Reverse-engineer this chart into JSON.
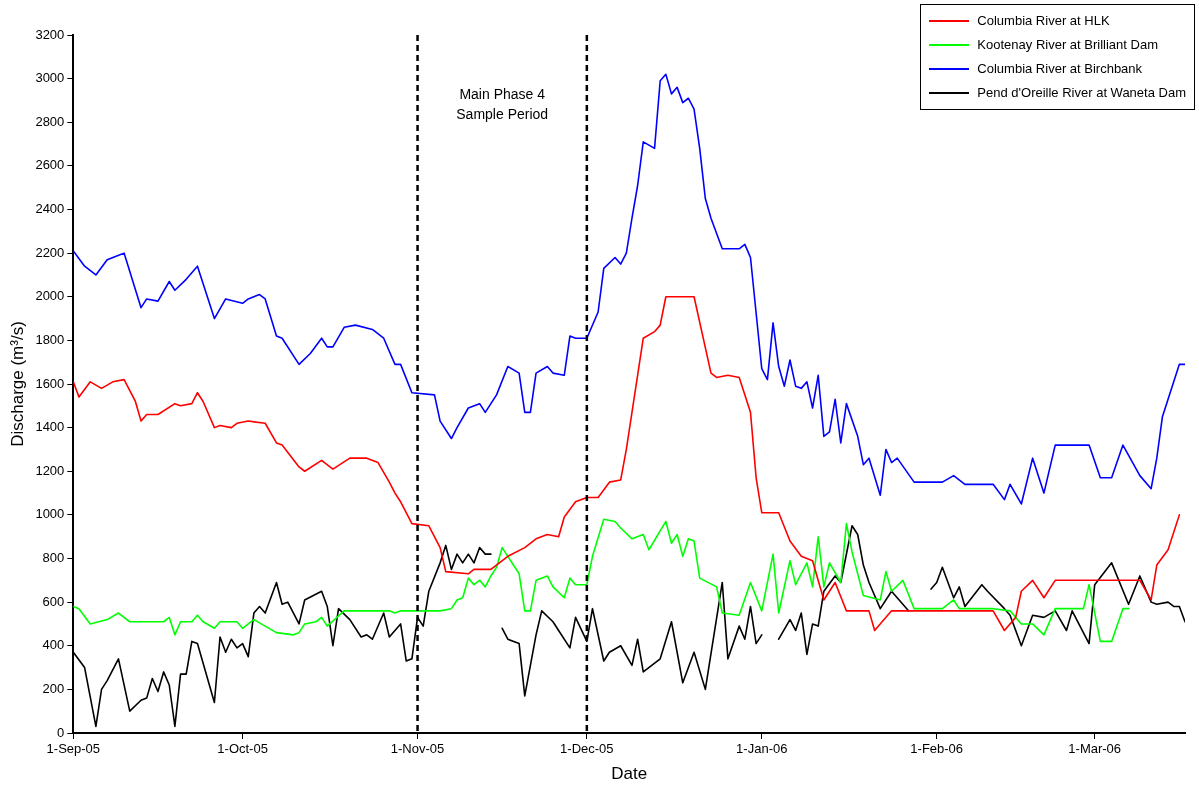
{
  "chart_data": {
    "type": "line",
    "xlabel": "Date",
    "ylabel": "Discharge (m³/s)",
    "xlim": [
      "2005-09-01",
      "2006-03-17"
    ],
    "xticks": [
      {
        "value": "2005-09-01",
        "label": "1-Sep-05"
      },
      {
        "value": "2005-10-01",
        "label": "1-Oct-05"
      },
      {
        "value": "2005-11-01",
        "label": "1-Nov-05"
      },
      {
        "value": "2005-12-01",
        "label": "1-Dec-05"
      },
      {
        "value": "2006-01-01",
        "label": "1-Jan-06"
      },
      {
        "value": "2006-02-01",
        "label": "1-Feb-06"
      },
      {
        "value": "2006-03-01",
        "label": "1-Mar-06"
      }
    ],
    "ylim": [
      0,
      3200
    ],
    "yticks": [
      0,
      200,
      400,
      600,
      800,
      1000,
      1200,
      1400,
      1600,
      1800,
      2000,
      2200,
      2400,
      2600,
      2800,
      3000,
      3200
    ],
    "grid": false,
    "legend": "top right",
    "marker": "none",
    "line_style": "solid",
    "ref_lines": [
      {
        "axis": "x",
        "value": "2005-11-01",
        "color": "#000000",
        "line_style": "dashed"
      },
      {
        "axis": "x",
        "value": "2005-12-01",
        "color": "#000000",
        "line_style": "dashed"
      }
    ],
    "annotations": [
      "Main Phase 4 Sample Period"
    ],
    "series": [
      {
        "name": "Columbia River at HLK",
        "color": "#ff0000",
        "x": [
          "2005-09-01",
          "2005-09-02",
          "2005-09-04",
          "2005-09-06",
          "2005-09-08",
          "2005-09-10",
          "2005-09-12",
          "2005-09-13",
          "2005-09-14",
          "2005-09-16",
          "2005-09-19",
          "2005-09-20",
          "2005-09-22",
          "2005-09-23",
          "2005-09-24",
          "2005-09-26",
          "2005-09-27",
          "2005-09-29",
          "2005-09-30",
          "2005-10-02",
          "2005-10-05",
          "2005-10-07",
          "2005-10-08",
          "2005-10-11",
          "2005-10-12",
          "2005-10-15",
          "2005-10-17",
          "2005-10-20",
          "2005-10-23",
          "2005-10-25",
          "2005-10-27",
          "2005-10-28",
          "2005-10-29",
          "2005-10-31",
          "2005-11-03",
          "2005-11-05",
          "2005-11-06",
          "2005-11-10",
          "2005-11-11",
          "2005-11-14",
          "2005-11-17",
          "2005-11-20",
          "2005-11-22",
          "2005-11-24",
          "2005-11-26",
          "2005-11-27",
          "2005-11-29",
          "2005-12-01",
          "2005-12-03",
          "2005-12-05",
          "2005-12-07",
          "2005-12-08",
          "2005-12-11",
          "2005-12-13",
          "2005-12-14",
          "2005-12-15",
          "2005-12-20",
          "2005-12-23",
          "2005-12-24",
          "2005-12-26",
          "2005-12-28",
          "2005-12-30",
          "2005-12-31",
          "2006-01-01",
          "2006-01-04",
          "2006-01-06",
          "2006-01-08",
          "2006-01-10",
          "2006-01-12",
          "2006-01-14",
          "2006-01-16",
          "2006-01-20",
          "2006-01-21",
          "2006-01-24",
          "2006-02-11",
          "2006-02-13",
          "2006-02-15",
          "2006-02-16",
          "2006-02-18",
          "2006-02-20",
          "2006-02-22",
          "2006-03-09",
          "2006-03-11",
          "2006-03-12",
          "2006-03-14",
          "2006-03-16"
        ],
        "values": [
          1610,
          1540,
          1610,
          1580,
          1610,
          1620,
          1520,
          1430,
          1460,
          1460,
          1510,
          1500,
          1510,
          1560,
          1520,
          1400,
          1410,
          1400,
          1420,
          1430,
          1420,
          1330,
          1320,
          1220,
          1200,
          1250,
          1210,
          1260,
          1260,
          1240,
          1150,
          1100,
          1060,
          960,
          950,
          850,
          740,
          730,
          750,
          750,
          810,
          850,
          890,
          910,
          900,
          990,
          1060,
          1080,
          1080,
          1150,
          1160,
          1300,
          1810,
          1840,
          1870,
          2000,
          2000,
          1650,
          1630,
          1640,
          1630,
          1470,
          1170,
          1010,
          1010,
          880,
          810,
          790,
          610,
          690,
          560,
          560,
          470,
          560,
          560,
          470,
          530,
          650,
          700,
          620,
          700,
          700,
          610,
          770,
          840,
          1000
        ]
      },
      {
        "name": "Kootenay River at Brilliant Dam",
        "color": "#00ff00",
        "x": [
          "2005-09-01",
          "2005-09-02",
          "2005-09-04",
          "2005-09-07",
          "2005-09-09",
          "2005-09-11",
          "2005-09-17",
          "2005-09-18",
          "2005-09-19",
          "2005-09-20",
          "2005-09-22",
          "2005-09-23",
          "2005-09-24",
          "2005-09-26",
          "2005-09-27",
          "2005-09-30",
          "2005-10-01",
          "2005-10-02",
          "2005-10-03",
          "2005-10-07",
          "2005-10-10",
          "2005-10-11",
          "2005-10-12",
          "2005-10-14",
          "2005-10-15",
          "2005-10-16",
          "2005-10-19",
          "2005-10-27",
          "2005-10-28",
          "2005-10-29",
          "2005-11-05",
          "2005-11-07",
          "2005-11-08",
          "2005-11-09",
          "2005-11-10",
          "2005-11-11",
          "2005-11-12",
          "2005-11-13",
          "2005-11-14",
          "2005-11-15",
          "2005-11-16",
          "2005-11-17",
          "2005-11-19",
          "2005-11-20",
          "2005-11-21",
          "2005-11-22",
          "2005-11-24",
          "2005-11-25",
          "2005-11-27",
          "2005-11-28",
          "2005-11-29",
          "2005-12-01",
          "2005-12-02",
          "2005-12-04",
          "2005-12-06",
          "2005-12-07",
          "2005-12-09",
          "2005-12-11",
          "2005-12-12",
          "2005-12-15",
          "2005-12-16",
          "2005-12-17",
          "2005-12-18",
          "2005-12-19",
          "2005-12-20",
          "2005-12-21",
          "2005-12-24",
          "2005-12-25",
          "2005-12-28",
          "2005-12-30",
          "2006-01-01",
          "2006-01-03",
          "2006-01-04",
          "2006-01-06",
          "2006-01-07",
          "2006-01-09",
          "2006-01-10",
          "2006-01-11",
          "2006-01-12",
          "2006-01-13",
          "2006-01-15",
          "2006-01-16",
          "2006-01-17",
          "2006-01-19",
          "2006-01-22",
          "2006-01-23",
          "2006-01-24",
          "2006-01-26",
          "2006-01-28",
          "2006-02-02",
          "2006-02-04",
          "2006-02-05",
          "2006-02-11",
          "2006-02-14",
          "2006-02-16",
          "2006-02-18",
          "2006-02-20",
          "2006-02-22",
          "2006-02-27",
          "2006-02-28",
          "2006-03-02",
          "2006-03-04",
          "2006-03-06",
          "2006-03-07"
        ],
        "values": [
          580,
          570,
          500,
          520,
          550,
          510,
          510,
          530,
          450,
          510,
          510,
          540,
          510,
          480,
          510,
          510,
          480,
          500,
          520,
          460,
          450,
          460,
          500,
          510,
          530,
          490,
          560,
          560,
          550,
          560,
          560,
          570,
          610,
          620,
          710,
          680,
          700,
          670,
          720,
          760,
          850,
          810,
          730,
          560,
          560,
          700,
          720,
          670,
          620,
          710,
          680,
          680,
          810,
          980,
          970,
          940,
          890,
          910,
          840,
          970,
          870,
          910,
          810,
          890,
          880,
          710,
          670,
          550,
          540,
          690,
          560,
          820,
          550,
          790,
          680,
          780,
          670,
          900,
          670,
          780,
          690,
          960,
          830,
          630,
          610,
          740,
          650,
          700,
          570,
          570,
          610,
          570,
          570,
          560,
          500,
          500,
          450,
          570,
          570,
          680,
          420,
          420,
          570,
          570
        ]
      },
      {
        "name": "Columbia River at Birchbank",
        "color": "#0000ff",
        "x": [
          "2005-09-01",
          "2005-09-03",
          "2005-09-05",
          "2005-09-07",
          "2005-09-10",
          "2005-09-13",
          "2005-09-14",
          "2005-09-16",
          "2005-09-18",
          "2005-09-19",
          "2005-09-21",
          "2005-09-23",
          "2005-09-26",
          "2005-09-28",
          "2005-10-01",
          "2005-10-02",
          "2005-10-04",
          "2005-10-05",
          "2005-10-07",
          "2005-10-08",
          "2005-10-11",
          "2005-10-13",
          "2005-10-15",
          "2005-10-16",
          "2005-10-17",
          "2005-10-19",
          "2005-10-21",
          "2005-10-24",
          "2005-10-26",
          "2005-10-28",
          "2005-10-29",
          "2005-10-31",
          "2005-11-04",
          "2005-11-05",
          "2005-11-07",
          "2005-11-08",
          "2005-11-10",
          "2005-11-12",
          "2005-11-13",
          "2005-11-15",
          "2005-11-17",
          "2005-11-19",
          "2005-11-20",
          "2005-11-21",
          "2005-11-22",
          "2005-11-24",
          "2005-11-25",
          "2005-11-27",
          "2005-11-28",
          "2005-11-29",
          "2005-12-01",
          "2005-12-03",
          "2005-12-04",
          "2005-12-06",
          "2005-12-07",
          "2005-12-08",
          "2005-12-09",
          "2005-12-10",
          "2005-12-11",
          "2005-12-13",
          "2005-12-14",
          "2005-12-15",
          "2005-12-16",
          "2005-12-17",
          "2005-12-18",
          "2005-12-19",
          "2005-12-20",
          "2005-12-21",
          "2005-12-22",
          "2005-12-23",
          "2005-12-25",
          "2005-12-28",
          "2005-12-29",
          "2005-12-30",
          "2006-01-01",
          "2006-01-02",
          "2006-01-03",
          "2006-01-04",
          "2006-01-05",
          "2006-01-06",
          "2006-01-07",
          "2006-01-08",
          "2006-01-09",
          "2006-01-10",
          "2006-01-11",
          "2006-01-12",
          "2006-01-13",
          "2006-01-14",
          "2006-01-15",
          "2006-01-16",
          "2006-01-18",
          "2006-01-19",
          "2006-01-20",
          "2006-01-22",
          "2006-01-23",
          "2006-01-24",
          "2006-01-25",
          "2006-01-28",
          "2006-02-02",
          "2006-02-04",
          "2006-02-06",
          "2006-02-11",
          "2006-02-13",
          "2006-02-14",
          "2006-02-16",
          "2006-02-18",
          "2006-02-20",
          "2006-02-22",
          "2006-02-28",
          "2006-03-02",
          "2006-03-04",
          "2006-03-06",
          "2006-03-09",
          "2006-03-11",
          "2006-03-12",
          "2006-03-13",
          "2006-03-16",
          "2006-03-17"
        ],
        "values": [
          2210,
          2140,
          2100,
          2170,
          2200,
          1950,
          1990,
          1980,
          2070,
          2030,
          2080,
          2140,
          1900,
          1990,
          1970,
          1990,
          2010,
          1990,
          1820,
          1810,
          1690,
          1740,
          1810,
          1770,
          1770,
          1860,
          1870,
          1850,
          1810,
          1690,
          1690,
          1560,
          1550,
          1430,
          1350,
          1400,
          1490,
          1510,
          1470,
          1550,
          1680,
          1650,
          1470,
          1470,
          1650,
          1680,
          1650,
          1640,
          1820,
          1810,
          1810,
          1930,
          2130,
          2180,
          2150,
          2200,
          2360,
          2510,
          2710,
          2680,
          2990,
          3020,
          2930,
          2960,
          2890,
          2910,
          2860,
          2680,
          2450,
          2360,
          2220,
          2220,
          2240,
          2180,
          1670,
          1620,
          1880,
          1680,
          1590,
          1710,
          1590,
          1580,
          1610,
          1490,
          1640,
          1360,
          1380,
          1530,
          1330,
          1510,
          1360,
          1230,
          1260,
          1090,
          1300,
          1240,
          1260,
          1150,
          1150,
          1180,
          1140,
          1140,
          1070,
          1140,
          1050,
          1260,
          1100,
          1320,
          1320,
          1170,
          1170,
          1320,
          1180,
          1120,
          1260,
          1450,
          1690,
          1690
        ]
      },
      {
        "name": "Pend d'Oreille River at Waneta Dam",
        "color": "#000000",
        "x": [
          "2005-09-01",
          "2005-09-03",
          "2005-09-05",
          "2005-09-06",
          "2005-09-07",
          "2005-09-09",
          "2005-09-11",
          "2005-09-13",
          "2005-09-14",
          "2005-09-15",
          "2005-09-16",
          "2005-09-17",
          "2005-09-18",
          "2005-09-19",
          "2005-09-20",
          "2005-09-21",
          "2005-09-22",
          "2005-09-23",
          "2005-09-26",
          "2005-09-27",
          "2005-09-28",
          "2005-09-29",
          "2005-09-30",
          "2005-10-01",
          "2005-10-02",
          "2005-10-03",
          "2005-10-04",
          "2005-10-05",
          "2005-10-07",
          "2005-10-08",
          "2005-10-09",
          "2005-10-11",
          "2005-10-12",
          "2005-10-15",
          "2005-10-16",
          "2005-10-17",
          "2005-10-18",
          "2005-10-20",
          "2005-10-22",
          "2005-10-23",
          "2005-10-24",
          "2005-10-26",
          "2005-10-27",
          "2005-10-29",
          "2005-10-30",
          "2005-10-31",
          "2005-11-01",
          "2005-11-02",
          "2005-11-03",
          "2005-11-05",
          "2005-11-06",
          "2005-11-07",
          "2005-11-08",
          "2005-11-09",
          "2005-11-10",
          "2005-11-11",
          "2005-11-12",
          "2005-11-13",
          "2005-11-14",
          "2005-11-15",
          "2005-11-16",
          "2005-11-17",
          "2005-11-19",
          "2005-11-20",
          "2005-11-22",
          "2005-11-23",
          "2005-11-25",
          "2005-11-26",
          "2005-11-28",
          "2005-11-29",
          "2005-12-01",
          "2005-12-02",
          "2005-12-04",
          "2005-12-05",
          "2005-12-07",
          "2005-12-09",
          "2005-12-10",
          "2005-12-11",
          "2005-12-14",
          "2005-12-16",
          "2005-12-18",
          "2005-12-20",
          "2005-12-22",
          "2005-12-25",
          "2005-12-26",
          "2005-12-28",
          "2005-12-29",
          "2005-12-30",
          "2005-12-31",
          "2006-01-01",
          "2006-01-02",
          "2006-01-04",
          "2006-01-06",
          "2006-01-07",
          "2006-01-08",
          "2006-01-09",
          "2006-01-10",
          "2006-01-11",
          "2006-01-12",
          "2006-01-14",
          "2006-01-15",
          "2006-01-17",
          "2006-01-18",
          "2006-01-19",
          "2006-01-20",
          "2006-01-22",
          "2006-01-24",
          "2006-01-27",
          "2006-01-29",
          "2006-01-31",
          "2006-02-01",
          "2006-02-02",
          "2006-02-04",
          "2006-02-05",
          "2006-02-06",
          "2006-02-09",
          "2006-02-10",
          "2006-02-13",
          "2006-02-14",
          "2006-02-16",
          "2006-02-18",
          "2006-02-20",
          "2006-02-22",
          "2006-02-24",
          "2006-02-25",
          "2006-02-28",
          "2006-03-01",
          "2006-03-04",
          "2006-03-07",
          "2006-03-09",
          "2006-03-11",
          "2006-03-12",
          "2006-03-14",
          "2006-03-15",
          "2006-03-16",
          "2006-03-17"
        ],
        "values": [
          370,
          300,
          30,
          200,
          240,
          340,
          100,
          150,
          160,
          250,
          190,
          280,
          220,
          30,
          270,
          270,
          420,
          410,
          140,
          440,
          370,
          430,
          390,
          410,
          350,
          550,
          580,
          550,
          690,
          590,
          600,
          500,
          610,
          650,
          580,
          400,
          570,
          520,
          440,
          450,
          430,
          550,
          440,
          500,
          330,
          340,
          530,
          490,
          650,
          780,
          860,
          750,
          820,
          780,
          820,
          780,
          850,
          820,
          820,
          null,
          480,
          430,
          410,
          170,
          450,
          560,
          510,
          470,
          390,
          530,
          420,
          570,
          330,
          370,
          400,
          310,
          430,
          280,
          340,
          510,
          230,
          370,
          200,
          690,
          340,
          490,
          430,
          580,
          410,
          450,
          null,
          430,
          520,
          470,
          550,
          360,
          500,
          490,
          650,
          720,
          690,
          950,
          910,
          770,
          690,
          570,
          650,
          560,
          null,
          660,
          690,
          760,
          620,
          670,
          580,
          680,
          650,
          570,
          540,
          400,
          540,
          530,
          560,
          470,
          560,
          410,
          680,
          780,
          590,
          720,
          600,
          590,
          600,
          580,
          580,
          510
        ]
      }
    ]
  }
}
